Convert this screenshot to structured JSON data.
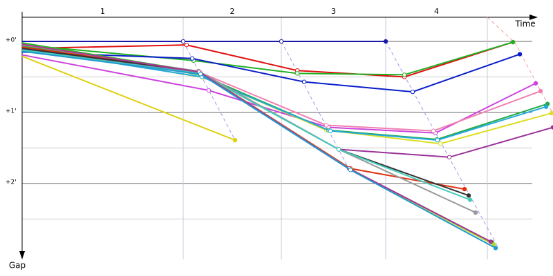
{
  "chart_data": {
    "type": "line",
    "x_label": "Time",
    "y_label": "Gap",
    "lap_labels": [
      "1",
      "2",
      "3",
      "4"
    ],
    "lap_bounds": [
      0,
      2.33,
      3.75,
      5.26,
      6.73
    ],
    "xlim": [
      0,
      7.68
    ],
    "ylim": [
      -0.34,
      3.07
    ],
    "yticks": [
      {
        "value": 0,
        "label": "+0'"
      },
      {
        "value": 1,
        "label": "+1'"
      },
      {
        "value": 2,
        "label": "+2'"
      }
    ],
    "minor_yticks": [
      0.5,
      1.5,
      2.5
    ],
    "grid": true,
    "series": [
      {
        "color": "#1a1aa8",
        "x": [
          0,
          2.33,
          3.75,
          5.26
        ],
        "values": [
          0,
          0,
          0,
          0
        ]
      },
      {
        "color": "#e01010",
        "x": [
          0,
          2.38,
          3.98,
          5.53,
          7.1
        ],
        "values": [
          0.1,
          0.05,
          0.41,
          0.5,
          0.01
        ]
      },
      {
        "color": "#22b022",
        "x": [
          0,
          2.48,
          3.98,
          5.53,
          7.1
        ],
        "values": [
          0.05,
          0.27,
          0.45,
          0.47,
          0.01
        ]
      },
      {
        "color": "#0a1ec8",
        "x": [
          0,
          2.46,
          4.08,
          5.65,
          7.2
        ],
        "values": [
          0.15,
          0.24,
          0.57,
          0.71,
          0.18
        ]
      },
      {
        "color": "#cc44dd",
        "x": [
          0,
          2.7,
          4.43,
          5.98,
          7.43
        ],
        "values": [
          0.19,
          0.69,
          1.21,
          1.29,
          0.59
        ]
      },
      {
        "color": "#f080b0",
        "x": [
          0,
          2.58,
          4.4,
          5.95,
          7.5
        ],
        "values": [
          0.1,
          0.44,
          1.18,
          1.26,
          0.7
        ]
      },
      {
        "color": "#e0d010",
        "x": [
          0,
          3.08
        ],
        "values": [
          0.21,
          1.39
        ]
      },
      {
        "color": "#dddd22",
        "x": [
          0,
          2.63,
          4.4,
          6.05,
          7.66
        ],
        "values": [
          0.08,
          0.51,
          1.25,
          1.44,
          1.01
        ]
      },
      {
        "color": "#22aa44",
        "x": [
          0,
          2.58,
          4.43,
          6.0,
          7.6
        ],
        "values": [
          0.06,
          0.47,
          1.25,
          1.38,
          0.88
        ]
      },
      {
        "color": "#22aadd",
        "x": [
          0,
          2.6,
          4.46,
          6.01,
          7.58
        ],
        "values": [
          0.1,
          0.5,
          1.26,
          1.39,
          0.92
        ]
      },
      {
        "color": "#993399",
        "x": [
          0,
          2.56,
          4.58,
          6.18,
          7.68
        ],
        "values": [
          0.12,
          0.44,
          1.52,
          1.63,
          1.21
        ]
      },
      {
        "color": "#e03010",
        "x": [
          0,
          2.55,
          4.75,
          6.4
        ],
        "values": [
          0.08,
          0.42,
          1.79,
          2.08
        ]
      },
      {
        "color": "#333333",
        "x": [
          0,
          2.55,
          4.58,
          6.46
        ],
        "values": [
          0.1,
          0.42,
          1.52,
          2.17
        ]
      },
      {
        "color": "#999999",
        "x": [
          0,
          2.55,
          4.58,
          6.56
        ],
        "values": [
          0.05,
          0.42,
          1.52,
          2.41
        ]
      },
      {
        "color": "#44ccbb",
        "x": [
          0,
          2.57,
          4.58,
          6.48
        ],
        "values": [
          0.12,
          0.45,
          1.52,
          2.23
        ]
      },
      {
        "color": "#22bb22",
        "x": [
          0,
          2.56,
          4.75,
          6.8
        ],
        "values": [
          0.02,
          0.43,
          1.8,
          2.83
        ]
      },
      {
        "color": "#aadd22",
        "x": [
          0,
          2.56,
          4.75,
          6.82
        ],
        "values": [
          0.04,
          0.43,
          1.8,
          2.86
        ]
      },
      {
        "color": "#aa3399",
        "x": [
          0,
          2.56,
          4.73,
          6.78
        ],
        "values": [
          0.04,
          0.43,
          1.79,
          2.82
        ]
      },
      {
        "color": "#2299cc",
        "x": [
          0,
          2.58,
          4.75,
          6.85
        ],
        "values": [
          0.14,
          0.46,
          1.81,
          2.91
        ]
      }
    ],
    "lap_lines": [
      {
        "color": "#9999ee",
        "x": [
          2.33,
          3.08
        ],
        "values": [
          0,
          1.39
        ]
      },
      {
        "color": "#9999ee",
        "x": [
          3.75,
          4.73
        ],
        "values": [
          0,
          1.8
        ]
      },
      {
        "color": "#9999ee",
        "x": [
          5.26,
          6.88
        ],
        "values": [
          0,
          2.89
        ]
      },
      {
        "color": "#f4a0a0",
        "x": [
          6.73,
          7.13,
          7.68
        ],
        "values": [
          -0.34,
          0.02,
          1.02
        ]
      }
    ]
  }
}
